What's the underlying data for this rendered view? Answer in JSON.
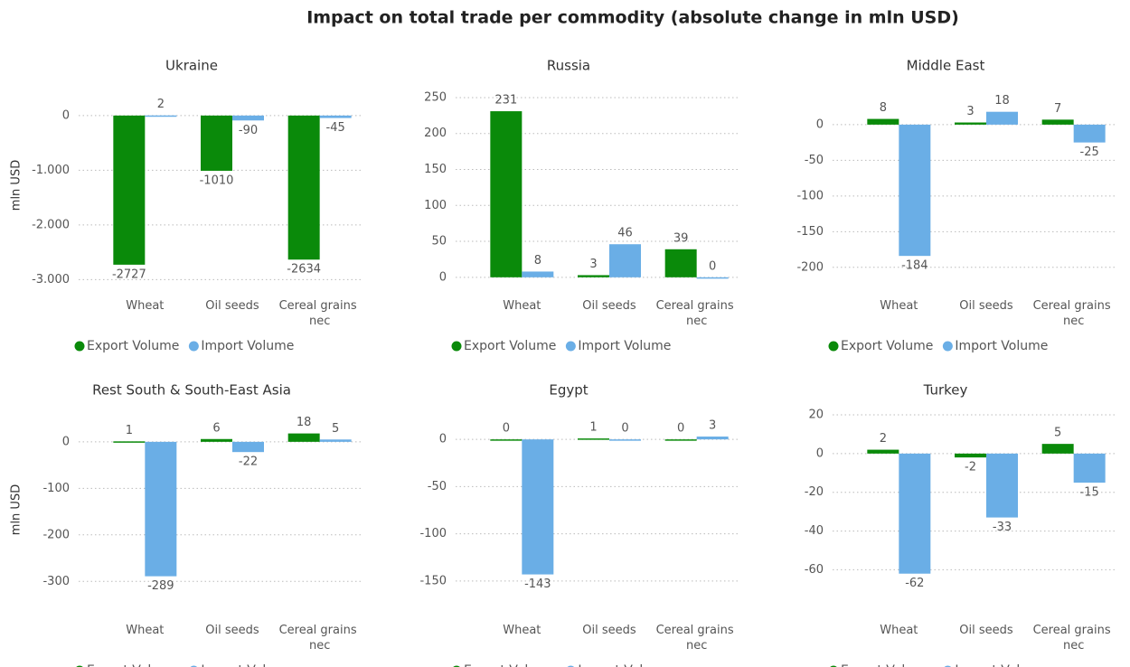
{
  "title": "Impact on total trade per commodity (absolute change in mln USD)",
  "chart_data": [
    {
      "type": "bar",
      "title": "Ukraine",
      "y_label": "mln USD",
      "categories": [
        "Wheat",
        "Oil seeds",
        "Cereal grains nec"
      ],
      "series": [
        {
          "name": "Export Volume",
          "color": "#0a8a0a",
          "values": [
            -2727,
            -1010,
            -2634
          ]
        },
        {
          "name": "Import Volume",
          "color": "#6aaee6",
          "values": [
            2,
            -90,
            -45
          ]
        }
      ],
      "ylim": [
        -3010,
        460
      ],
      "yticks": [
        0,
        {
          "value": -1000,
          "label": "-1.000"
        },
        {
          "value": -2000,
          "label": "-2.000"
        },
        {
          "value": -3000,
          "label": "-3.000"
        }
      ],
      "grid": true,
      "legend": "bottom-left"
    },
    {
      "type": "bar",
      "title": "Russia",
      "categories": [
        "Wheat",
        "Oil seeds",
        "Cereal grains nec"
      ],
      "series": [
        {
          "name": "Export Volume",
          "color": "#0a8a0a",
          "values": [
            231,
            3,
            39
          ]
        },
        {
          "name": "Import Volume",
          "color": "#6aaee6",
          "values": [
            8,
            46,
            0
          ]
        }
      ],
      "ylim": [
        -4,
        260
      ],
      "yticks": [
        0,
        50,
        100,
        150,
        200,
        250
      ],
      "grid": true,
      "legend": "bottom-left"
    },
    {
      "type": "bar",
      "title": "Middle East",
      "categories": [
        "Wheat",
        "Oil seeds",
        "Cereal grains nec"
      ],
      "series": [
        {
          "name": "Export Volume",
          "color": "#0a8a0a",
          "values": [
            8,
            3,
            7
          ]
        },
        {
          "name": "Import Volume",
          "color": "#6aaee6",
          "values": [
            -184,
            18,
            -25
          ]
        }
      ],
      "ylim": [
        -218,
        48
      ],
      "yticks": [
        0,
        -50,
        -100,
        -150,
        -200
      ],
      "grid": true,
      "legend": "bottom-left"
    },
    {
      "type": "bar",
      "title": "Rest South & South-East Asia",
      "y_label": "mln USD",
      "categories": [
        "Wheat",
        "Oil seeds",
        "Cereal grains nec"
      ],
      "series": [
        {
          "name": "Export Volume",
          "color": "#0a8a0a",
          "values": [
            1,
            6,
            18
          ]
        },
        {
          "name": "Import Volume",
          "color": "#6aaee6",
          "values": [
            -289,
            -22,
            5
          ]
        }
      ],
      "ylim": [
        -350,
        58
      ],
      "yticks": [
        0,
        -100,
        -200,
        -300
      ],
      "grid": true,
      "legend": "bottom-left"
    },
    {
      "type": "bar",
      "title": "Egypt",
      "categories": [
        "Wheat",
        "Oil seeds",
        "Cereal grains nec"
      ],
      "series": [
        {
          "name": "Export Volume",
          "color": "#0a8a0a",
          "values": [
            0,
            1,
            0
          ]
        },
        {
          "name": "Import Volume",
          "color": "#6aaee6",
          "values": [
            -143,
            0,
            3
          ]
        }
      ],
      "ylim": [
        -175,
        26
      ],
      "yticks": [
        0,
        -50,
        -100,
        -150
      ],
      "grid": true,
      "legend": "bottom-left"
    },
    {
      "type": "bar",
      "title": "Turkey",
      "categories": [
        "Wheat",
        "Oil seeds",
        "Cereal grains nec"
      ],
      "series": [
        {
          "name": "Export Volume",
          "color": "#0a8a0a",
          "values": [
            2,
            -2,
            5
          ]
        },
        {
          "name": "Import Volume",
          "color": "#6aaee6",
          "values": [
            -62,
            -33,
            -15
          ]
        }
      ],
      "ylim": [
        -78,
        20
      ],
      "yticks": [
        20,
        0,
        -20,
        -40,
        -60
      ],
      "grid": true,
      "legend": "bottom-left"
    }
  ]
}
